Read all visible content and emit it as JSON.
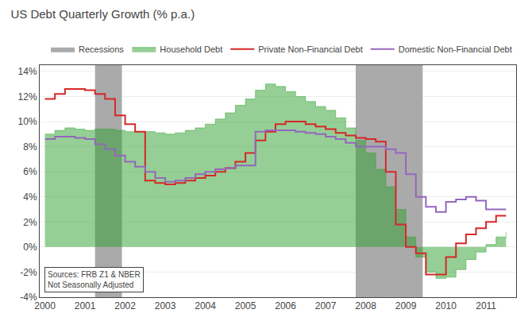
{
  "chart_data": {
    "type": "line",
    "title": "US Debt Quarterly Growth (% p.a.)",
    "x": [
      2000.0,
      2000.25,
      2000.5,
      2000.75,
      2001.0,
      2001.25,
      2001.5,
      2001.75,
      2002.0,
      2002.25,
      2002.5,
      2002.75,
      2003.0,
      2003.25,
      2003.5,
      2003.75,
      2004.0,
      2004.25,
      2004.5,
      2004.75,
      2005.0,
      2005.25,
      2005.5,
      2005.75,
      2006.0,
      2006.25,
      2006.5,
      2006.75,
      2007.0,
      2007.25,
      2007.5,
      2007.75,
      2008.0,
      2008.25,
      2008.5,
      2008.75,
      2009.0,
      2009.25,
      2009.5,
      2009.75,
      2010.0,
      2010.25,
      2010.5,
      2010.75,
      2011.0,
      2011.25,
      2011.5
    ],
    "series": [
      {
        "name": "Household Debt",
        "type": "area",
        "line_style": "step",
        "values": [
          0.09,
          0.093,
          0.095,
          0.094,
          0.093,
          0.094,
          0.094,
          0.093,
          0.092,
          0.092,
          0.092,
          0.091,
          0.09,
          0.091,
          0.093,
          0.095,
          0.098,
          0.102,
          0.107,
          0.113,
          0.118,
          0.125,
          0.13,
          0.128,
          0.124,
          0.12,
          0.116,
          0.112,
          0.109,
          0.103,
          0.095,
          0.085,
          0.075,
          0.062,
          0.048,
          0.03,
          0.008,
          -0.008,
          -0.02,
          -0.025,
          -0.024,
          -0.018,
          -0.01,
          -0.004,
          0.002,
          0.008,
          0.012
        ]
      },
      {
        "name": "Private Non-Financial Debt",
        "type": "line",
        "line_style": "step",
        "values": [
          0.118,
          0.122,
          0.126,
          0.126,
          0.125,
          0.122,
          0.118,
          0.105,
          0.098,
          0.092,
          0.053,
          0.051,
          0.05,
          0.051,
          0.053,
          0.055,
          0.057,
          0.06,
          0.063,
          0.068,
          0.075,
          0.085,
          0.092,
          0.098,
          0.1,
          0.1,
          0.098,
          0.096,
          0.094,
          0.091,
          0.089,
          0.087,
          0.086,
          0.084,
          0.06,
          0.018,
          0.0,
          -0.005,
          -0.022,
          -0.022,
          -0.008,
          0.003,
          0.01,
          0.015,
          0.02,
          0.025,
          0.025
        ]
      },
      {
        "name": "Domestic Non-Financial Debt",
        "type": "line",
        "line_style": "step",
        "values": [
          0.086,
          0.088,
          0.088,
          0.087,
          0.086,
          0.082,
          0.078,
          0.073,
          0.068,
          0.064,
          0.06,
          0.055,
          0.052,
          0.053,
          0.055,
          0.058,
          0.06,
          0.062,
          0.063,
          0.065,
          0.065,
          0.092,
          0.093,
          0.093,
          0.093,
          0.092,
          0.091,
          0.09,
          0.088,
          0.086,
          0.083,
          0.08,
          0.08,
          0.08,
          0.078,
          0.075,
          0.058,
          0.04,
          0.032,
          0.028,
          0.036,
          0.038,
          0.04,
          0.037,
          0.03,
          0.03,
          0.03
        ]
      }
    ],
    "recessions": {
      "name": "Recessions",
      "color": "#aaaaaa",
      "periods": [
        [
          2001.25,
          2001.92
        ],
        [
          2007.75,
          2009.42
        ]
      ]
    },
    "xlim": [
      1999.87,
      2011.75
    ],
    "xticks": [
      2000,
      2001,
      2002,
      2003,
      2004,
      2005,
      2006,
      2007,
      2008,
      2009,
      2010,
      2011
    ],
    "ylim": [
      -0.04,
      0.145
    ],
    "yticks": [
      {
        "value": -0.04,
        "label": "-4%"
      },
      {
        "value": -0.02,
        "label": "-2%"
      },
      {
        "value": 0.0,
        "label": "0%"
      },
      {
        "value": 0.02,
        "label": "2%"
      },
      {
        "value": 0.04,
        "label": "4%"
      },
      {
        "value": 0.06,
        "label": "6%"
      },
      {
        "value": 0.08,
        "label": "8%"
      },
      {
        "value": 0.1,
        "label": "10%"
      },
      {
        "value": 0.12,
        "label": "12%"
      },
      {
        "value": 0.14,
        "label": "14%"
      }
    ],
    "grid": "y",
    "legend": "upper right",
    "annotation": "Sources: FRB Z1 & NBER\nNot Seasonally Adjusted"
  }
}
